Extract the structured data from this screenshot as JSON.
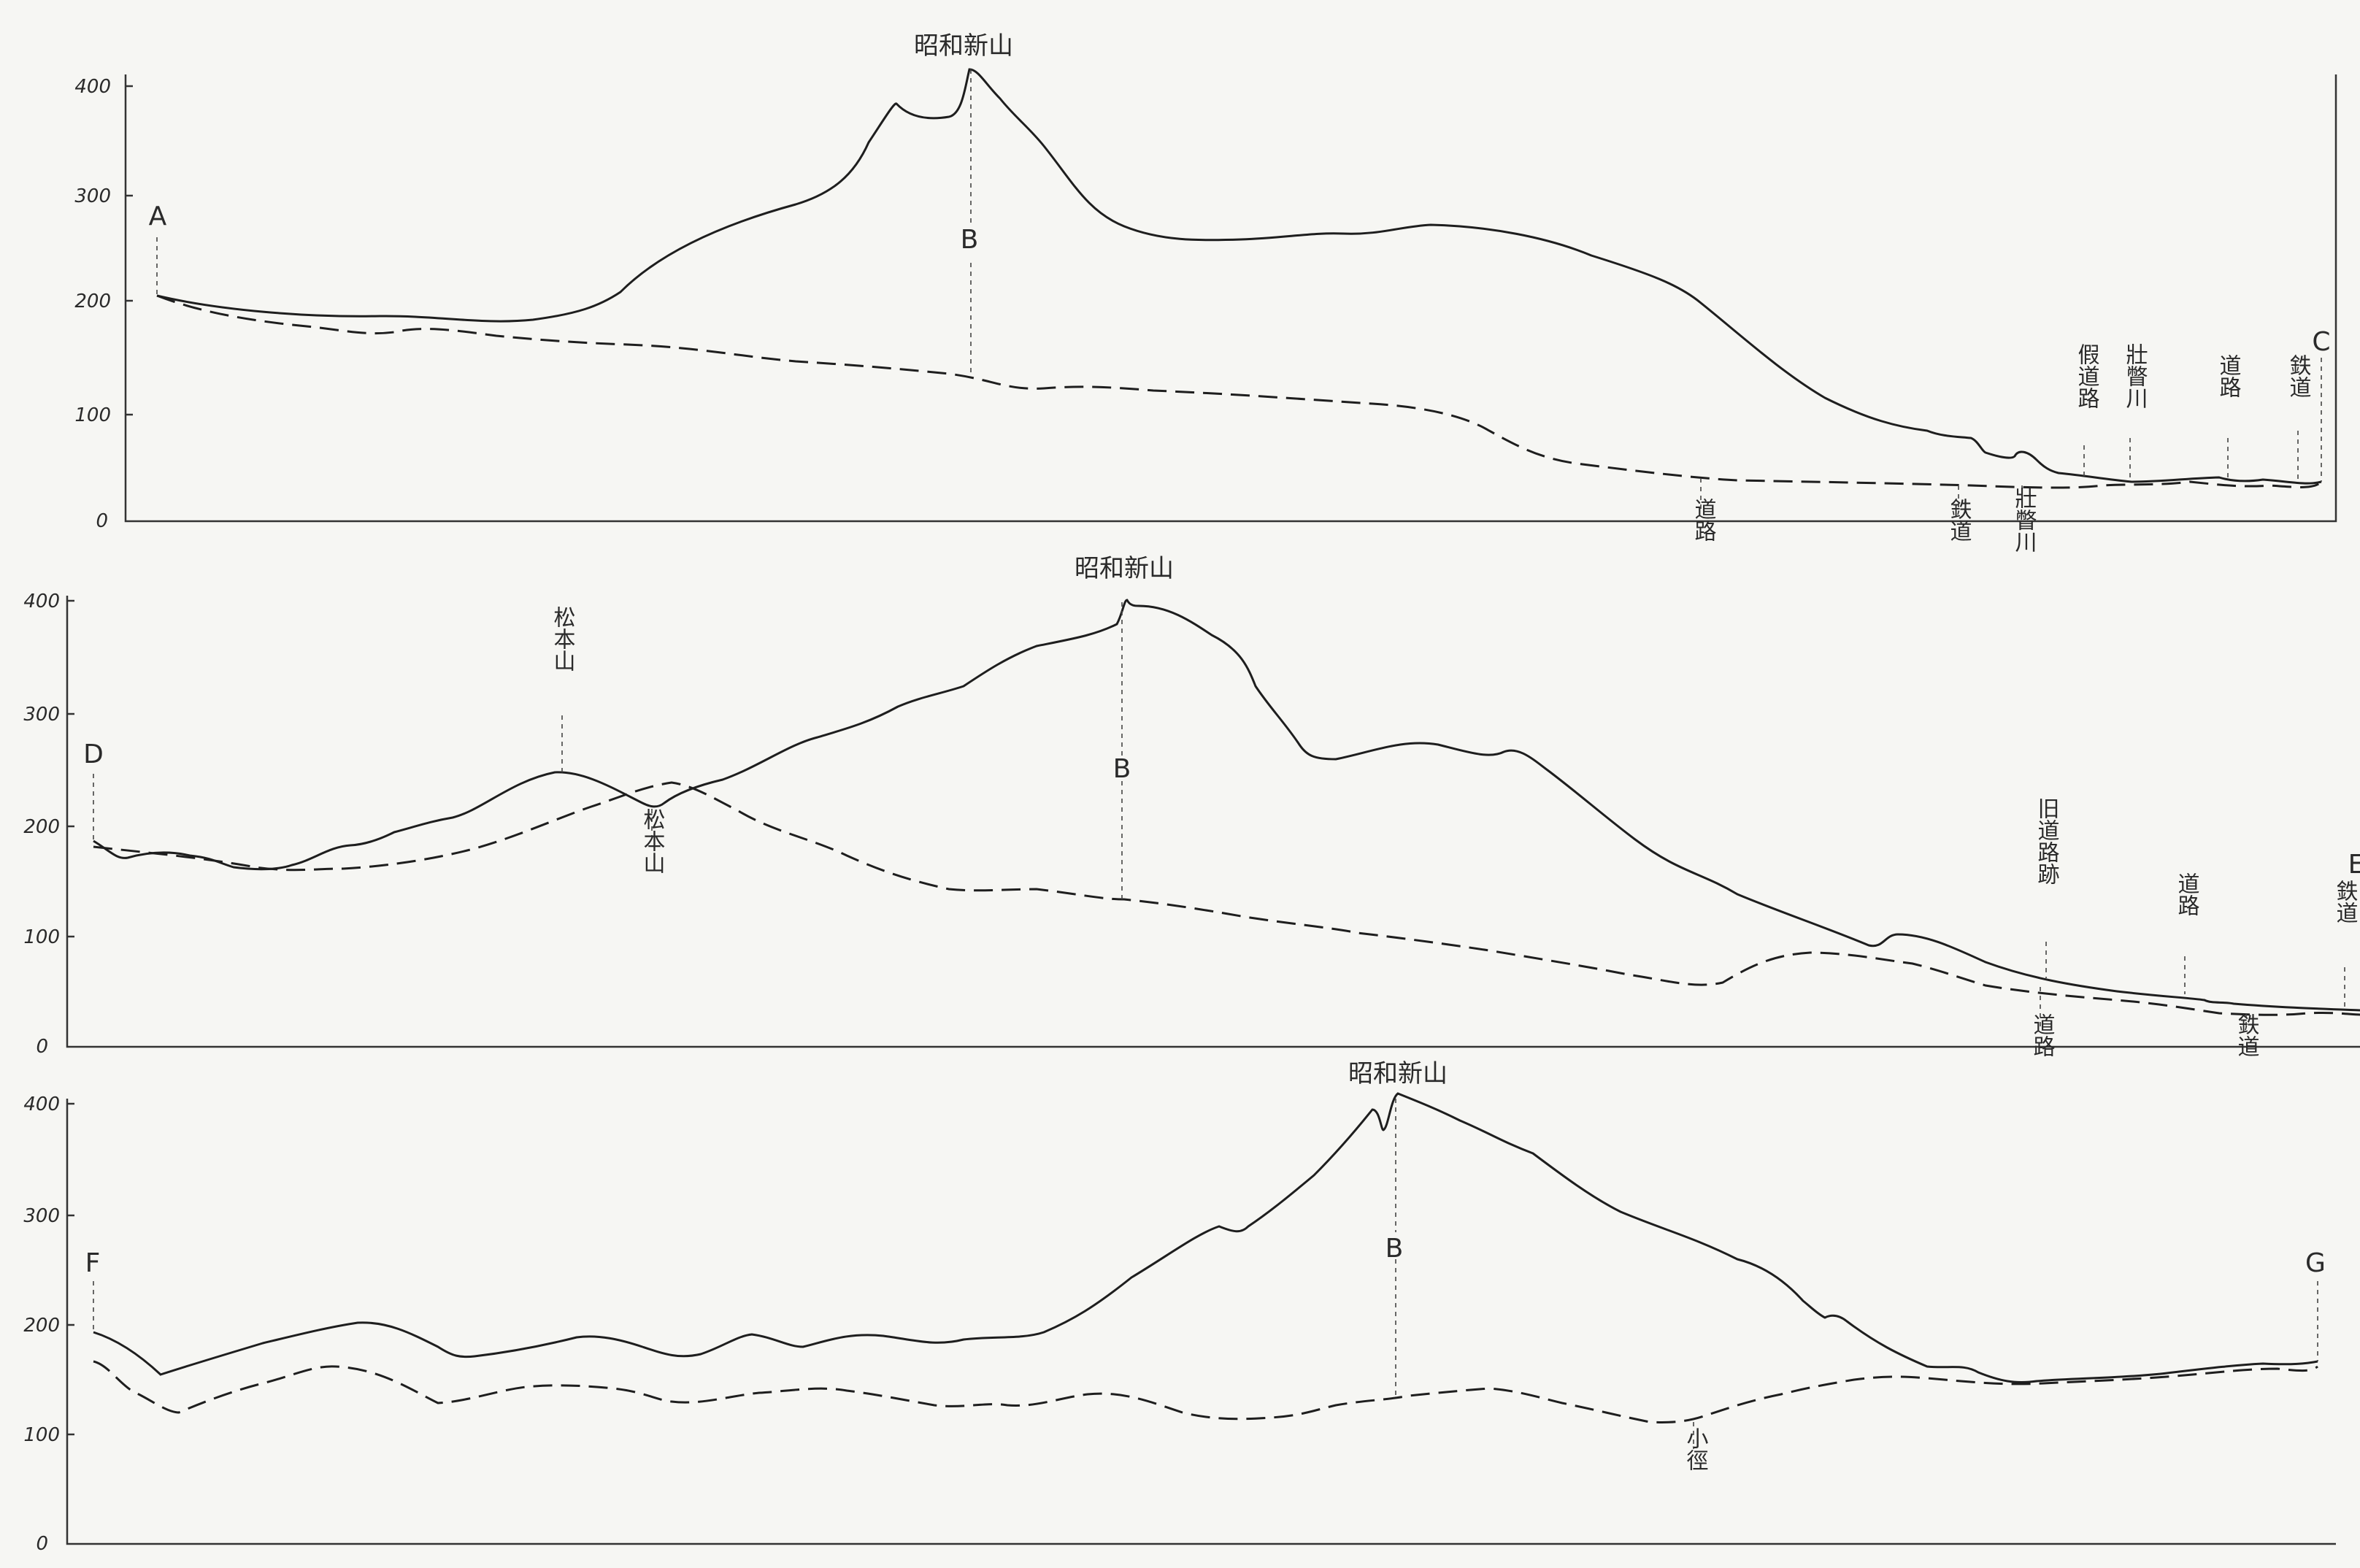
{
  "profiles": [
    {
      "id": "profile-1",
      "title": "昭和新山",
      "y_ticks": [
        "400",
        "300",
        "200",
        "100",
        "0"
      ],
      "point_labels": [
        "A",
        "B",
        "C"
      ],
      "annotations_above": [
        "假道路",
        "壯瞥川",
        "道路",
        "鉄道"
      ],
      "annotations_below": [
        "道路",
        "鉄道",
        "壯瞥川"
      ]
    },
    {
      "id": "profile-2",
      "title": "昭和新山",
      "y_ticks": [
        "400",
        "300",
        "200",
        "100",
        "0"
      ],
      "point_labels": [
        "D",
        "B",
        "E"
      ],
      "annotations_above": [
        "松本山",
        "旧道路跡",
        "道路",
        "鉄道"
      ],
      "annotations_below": [
        "松本山",
        "道路",
        "鉄道"
      ]
    },
    {
      "id": "profile-3",
      "title": "昭和新山",
      "y_ticks": [
        "400",
        "300",
        "200",
        "100",
        "0"
      ],
      "point_labels": [
        "F",
        "B",
        "G"
      ],
      "annotations_above": [],
      "annotations_below": [
        "小徑"
      ]
    }
  ]
}
